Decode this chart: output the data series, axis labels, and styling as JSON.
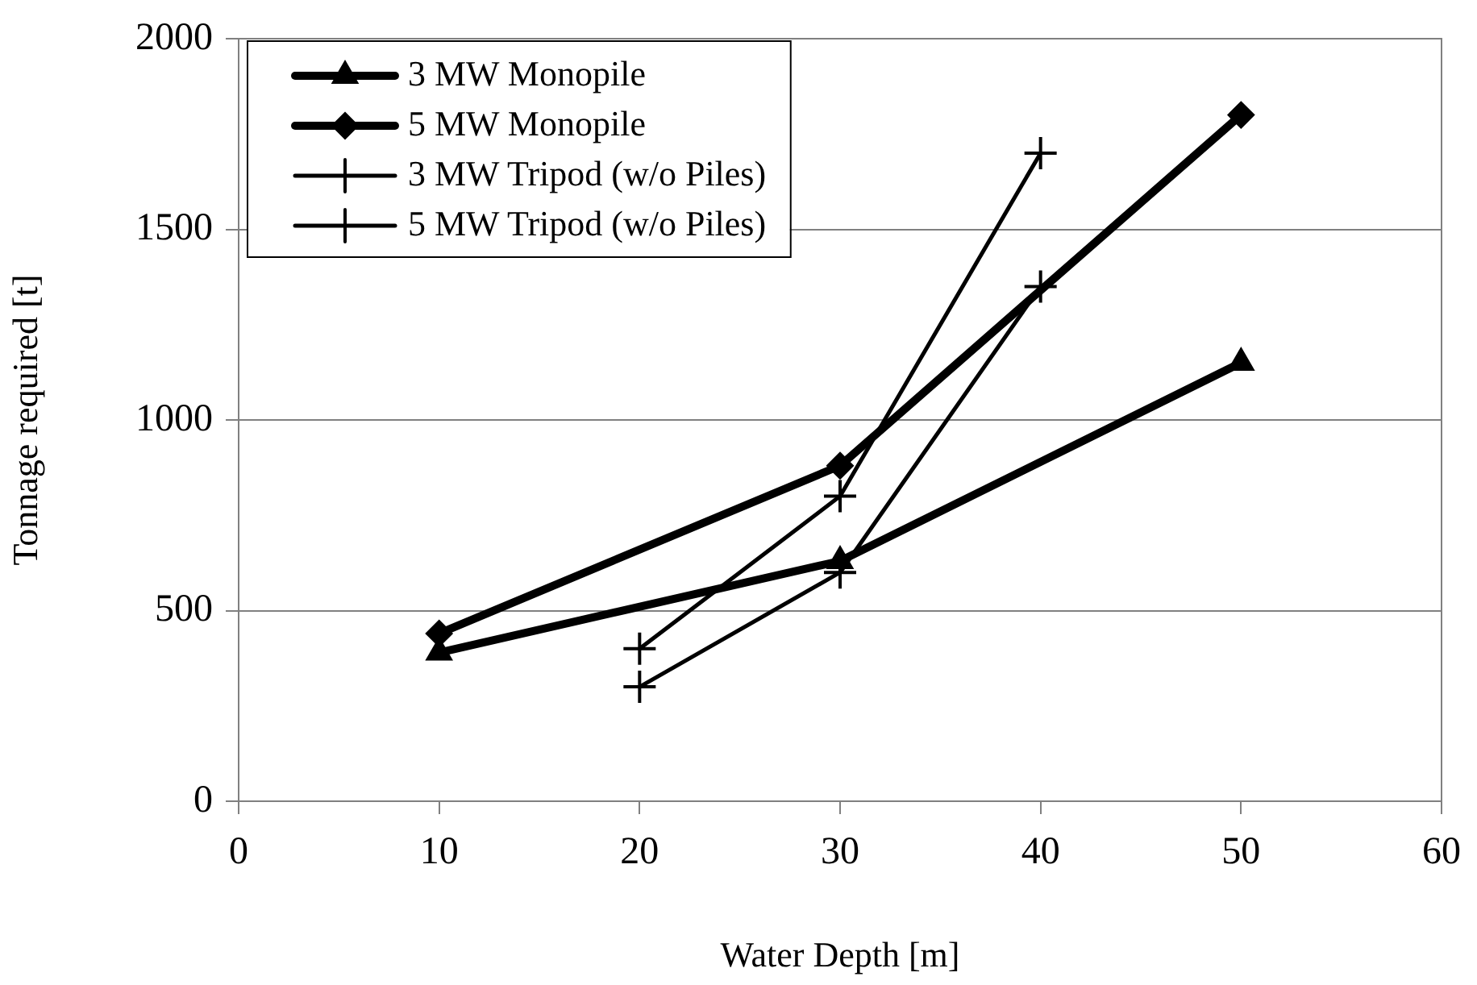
{
  "chart_data": {
    "type": "line",
    "xlabel": "Water Depth [m]",
    "ylabel": "Tonnage required [t]",
    "xlim": [
      0,
      60
    ],
    "xticks": [
      0,
      10,
      20,
      30,
      40,
      50,
      60
    ],
    "ylim": [
      0,
      2000
    ],
    "yticks": [
      0,
      500,
      1000,
      1500,
      2000
    ],
    "grid": "y",
    "legend": "top left",
    "line_style": "solid",
    "series": [
      {
        "name": "3 MW Monopile",
        "color": "#000000",
        "marker": "triangle",
        "x": [
          10,
          30,
          50
        ],
        "values": [
          390,
          630,
          1150
        ]
      },
      {
        "name": "5 MW Monopile",
        "color": "#000000",
        "marker": "diamond",
        "x": [
          10,
          30,
          50
        ],
        "values": [
          440,
          880,
          1800
        ]
      },
      {
        "name": "3 MW Tripod (w/o Piles)",
        "color": "#000000",
        "marker": "cross",
        "x": [
          20,
          30,
          40
        ],
        "values": [
          300,
          600,
          1350
        ]
      },
      {
        "name": "5 MW Tripod (w/o Piles)",
        "color": "#000000",
        "marker": "cross",
        "x": [
          20,
          30,
          40
        ],
        "values": [
          400,
          800,
          1700
        ]
      }
    ]
  }
}
